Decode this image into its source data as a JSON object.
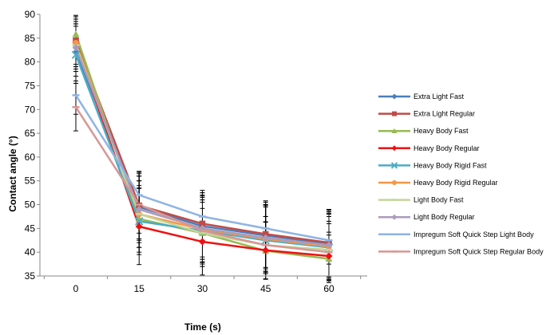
{
  "chart_data": {
    "type": "line",
    "title": "",
    "xlabel": "Time (s)",
    "ylabel": "Contact angle (°)",
    "x": [
      0,
      15,
      30,
      45,
      60
    ],
    "xticks": [
      "0",
      "15",
      "30",
      "45",
      "60"
    ],
    "ylim": [
      35,
      90
    ],
    "yticks": [
      35,
      40,
      45,
      50,
      55,
      60,
      65,
      70,
      75,
      80,
      85,
      90
    ],
    "grid": false,
    "legend_position": "right",
    "series": [
      {
        "name": "Extra Light Fast",
        "color": "#4a7ebb",
        "marker": "diamond",
        "values": [
          82.0,
          49.5,
          45.5,
          43.5,
          41.8
        ],
        "errors": [
          6.0,
          7.0,
          7.0,
          7.0,
          7.0
        ]
      },
      {
        "name": "Extra Light Regular",
        "color": "#be4b48",
        "marker": "square",
        "values": [
          84.5,
          49.8,
          46.0,
          43.8,
          42.0
        ],
        "errors": [
          5.0,
          7.0,
          7.0,
          7.0,
          7.0
        ]
      },
      {
        "name": "Heavy Body Fast",
        "color": "#98b954",
        "marker": "triangle",
        "values": [
          85.8,
          47.0,
          44.0,
          40.3,
          38.6
        ],
        "errors": [
          4.0,
          7.0,
          7.0,
          6.0,
          5.0
        ]
      },
      {
        "name": "Heavy Body Regular",
        "color": "#ee1111",
        "marker": "diamond",
        "values": [
          84.0,
          45.4,
          42.2,
          40.4,
          39.2
        ],
        "errors": [
          5.0,
          8.0,
          7.0,
          6.0,
          5.0
        ]
      },
      {
        "name": "Heavy Body Rigid Fast",
        "color": "#4bacc6",
        "marker": "x",
        "values": [
          81.5,
          46.5,
          44.5,
          42.5,
          41.0
        ],
        "errors": [
          6.0,
          7.0,
          7.0,
          7.0,
          7.0
        ]
      },
      {
        "name": "Heavy Body Rigid Regular",
        "color": "#f79646",
        "marker": "circle",
        "values": [
          84.0,
          48.0,
          44.8,
          42.8,
          41.2
        ],
        "errors": [
          5.0,
          7.0,
          7.0,
          7.0,
          7.0
        ]
      },
      {
        "name": "Light Body Fast",
        "color": "#c3d69b",
        "marker": "dash",
        "values": [
          83.5,
          48.0,
          44.0,
          41.5,
          40.5
        ],
        "errors": [
          5.0,
          7.0,
          7.0,
          6.0,
          6.0
        ]
      },
      {
        "name": "Light Body Regular",
        "color": "#a99bbd",
        "marker": "diamond",
        "values": [
          83.0,
          49.0,
          45.0,
          43.0,
          41.5
        ],
        "errors": [
          5.0,
          7.0,
          7.0,
          7.0,
          7.0
        ]
      },
      {
        "name": "Impregum Soft Quick Step Light Body",
        "color": "#8eb4e3",
        "marker": "dash",
        "values": [
          73.0,
          52.0,
          47.5,
          45.0,
          42.5
        ],
        "errors": [
          4.0,
          5.0,
          5.0,
          5.0,
          5.0
        ]
      },
      {
        "name": "Impregum Soft Quick Step Regular Body",
        "color": "#d99694",
        "marker": "dash",
        "values": [
          70.5,
          50.0,
          44.5,
          41.5,
          40.0
        ],
        "errors": [
          5.0,
          6.0,
          6.0,
          6.0,
          6.0
        ]
      }
    ]
  }
}
